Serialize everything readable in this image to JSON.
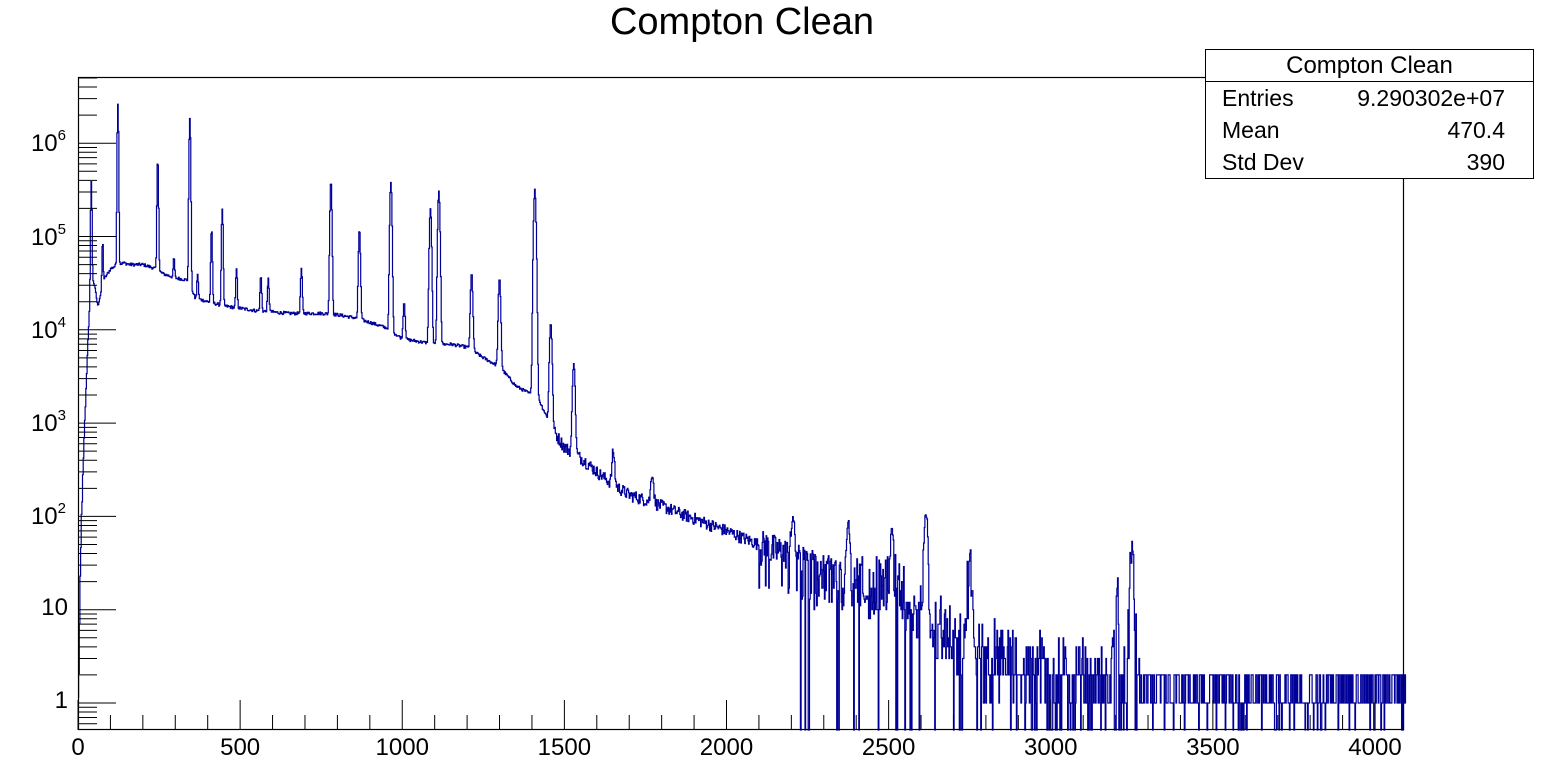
{
  "title": "Compton Clean",
  "stats_box": {
    "title": "Compton Clean",
    "rows": [
      {
        "label": "Entries",
        "value": "9.290302e+07"
      },
      {
        "label": "Mean",
        "value": "470.4"
      },
      {
        "label": "Std Dev",
        "value": "390"
      }
    ]
  },
  "colors": {
    "line": "#000099",
    "axis": "#000000",
    "background": "#ffffff"
  },
  "axes": {
    "x_ticks": [
      {
        "value": 0,
        "label": "0"
      },
      {
        "value": 500,
        "label": "500"
      },
      {
        "value": 1000,
        "label": "1000"
      },
      {
        "value": 1500,
        "label": "1500"
      },
      {
        "value": 2000,
        "label": "2000"
      },
      {
        "value": 2500,
        "label": "2500"
      },
      {
        "value": 3000,
        "label": "3000"
      },
      {
        "value": 3500,
        "label": "3500"
      },
      {
        "value": 4000,
        "label": "4000"
      }
    ],
    "y_ticks": [
      {
        "exp": 0,
        "base": "1",
        "sup": ""
      },
      {
        "exp": 1,
        "base": "10",
        "sup": ""
      },
      {
        "exp": 2,
        "base": "10",
        "sup": "2"
      },
      {
        "exp": 3,
        "base": "10",
        "sup": "3"
      },
      {
        "exp": 4,
        "base": "10",
        "sup": "4"
      },
      {
        "exp": 5,
        "base": "10",
        "sup": "5"
      },
      {
        "exp": 6,
        "base": "10",
        "sup": "6"
      }
    ]
  },
  "chart_data": {
    "type": "line",
    "title": "Compton Clean",
    "xlabel": "",
    "ylabel": "",
    "xlim": [
      0,
      4096
    ],
    "ylim": [
      0.55,
      5000000
    ],
    "yscale": "log",
    "grid": false,
    "legend": "stats box top-right",
    "series": [
      {
        "name": "Compton Clean",
        "description": "Gamma-ray spectrum histogram (counts per channel, log scale)",
        "continuum": {
          "x": [
            0,
            10,
            20,
            30,
            40,
            50,
            60,
            70,
            80,
            100,
            120,
            140,
            160,
            200,
            240,
            260,
            300,
            340,
            360,
            400,
            450,
            500,
            550,
            600,
            650,
            700,
            750,
            800,
            850,
            900,
            950,
            1000,
            1050,
            1100,
            1150,
            1200,
            1250,
            1300,
            1350,
            1400,
            1420,
            1460,
            1480,
            1500,
            1540,
            1560,
            1600,
            1650,
            1700,
            1750,
            1800,
            1850,
            1900,
            2000,
            2100,
            2200,
            2300,
            2400,
            2500,
            2600,
            2620,
            2700,
            2800,
            2900,
            3000,
            3200,
            3400,
            3600,
            3800,
            4000,
            4090
          ],
          "y": [
            1,
            100,
            1000,
            8000,
            40000,
            30000,
            18000,
            25000,
            35000,
            45000,
            50000,
            52000,
            50000,
            50000,
            45000,
            40000,
            36000,
            34000,
            22000,
            20000,
            18000,
            17000,
            16000,
            15500,
            15000,
            15000,
            15000,
            14500,
            13500,
            12000,
            10500,
            8000,
            7500,
            7000,
            7000,
            6500,
            5000,
            4000,
            2500,
            2000,
            1800,
            900,
            700,
            550,
            450,
            400,
            300,
            220,
            170,
            150,
            130,
            110,
            95,
            70,
            50,
            38,
            28,
            22,
            17,
            12,
            8,
            6,
            4,
            3,
            2.5,
            2,
            1.8,
            1.6,
            1.5,
            1.4,
            1.4
          ]
        },
        "peaks": [
          {
            "x": 40,
            "y": 400000
          },
          {
            "x": 75,
            "y": 90000
          },
          {
            "x": 122,
            "y": 2700000
          },
          {
            "x": 245,
            "y": 700000
          },
          {
            "x": 295,
            "y": 60000
          },
          {
            "x": 344,
            "y": 1900000
          },
          {
            "x": 368,
            "y": 40000
          },
          {
            "x": 411,
            "y": 120000
          },
          {
            "x": 444,
            "y": 200000
          },
          {
            "x": 488,
            "y": 45000
          },
          {
            "x": 563,
            "y": 38000
          },
          {
            "x": 586,
            "y": 35000
          },
          {
            "x": 688,
            "y": 45000
          },
          {
            "x": 779,
            "y": 400000
          },
          {
            "x": 867,
            "y": 120000
          },
          {
            "x": 964,
            "y": 380000
          },
          {
            "x": 1005,
            "y": 20000
          },
          {
            "x": 1086,
            "y": 200000
          },
          {
            "x": 1112,
            "y": 300000
          },
          {
            "x": 1213,
            "y": 40000
          },
          {
            "x": 1299,
            "y": 35000
          },
          {
            "x": 1408,
            "y": 320000
          },
          {
            "x": 1457,
            "y": 12000
          },
          {
            "x": 1528,
            "y": 4500
          },
          {
            "x": 1650,
            "y": 500
          },
          {
            "x": 1770,
            "y": 300
          },
          {
            "x": 2204,
            "y": 100
          },
          {
            "x": 2375,
            "y": 90
          },
          {
            "x": 2510,
            "y": 80
          },
          {
            "x": 2614,
            "y": 120
          },
          {
            "x": 2750,
            "y": 40
          },
          {
            "x": 3200,
            "y": 20
          },
          {
            "x": 3250,
            "y": 38
          }
        ]
      }
    ]
  }
}
